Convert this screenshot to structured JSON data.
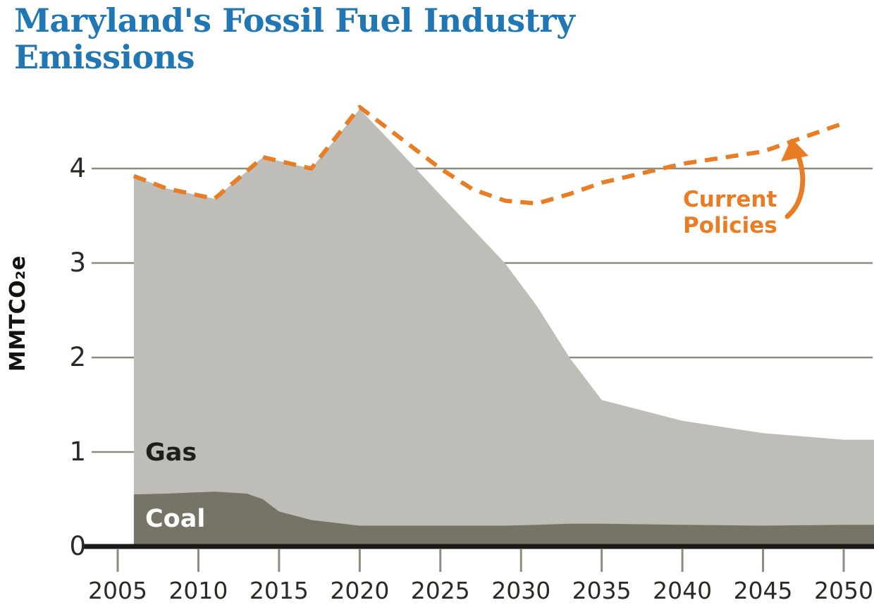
{
  "page": {
    "title_lines": [
      "Maryland's Fossil Fuel Industry",
      "Emissions"
    ],
    "title_color": "#2176B4",
    "background": "#FFFFFF"
  },
  "chart_data": {
    "type": "area",
    "title": "Maryland's Fossil Fuel Industry Emissions",
    "xlabel": "",
    "ylabel": "MMTCO₂e",
    "x_ticks": [
      2005,
      2010,
      2015,
      2020,
      2025,
      2030,
      2035,
      2040,
      2045,
      2050
    ],
    "y_ticks": [
      0,
      1,
      2,
      3,
      4
    ],
    "xlim": [
      2005,
      2052
    ],
    "ylim": [
      0,
      4.8
    ],
    "grid": "horizontal",
    "legend_position": "inline-labels",
    "stacked": true,
    "years": [
      2006,
      2008,
      2011,
      2013,
      2014,
      2015,
      2017,
      2020,
      2022,
      2025,
      2027,
      2029,
      2031,
      2033,
      2035,
      2040,
      2045,
      2050
    ],
    "series": [
      {
        "name": "Coal",
        "color": "#757467",
        "label_color": "#FFFFFF",
        "values": [
          0.55,
          0.56,
          0.58,
          0.56,
          0.5,
          0.37,
          0.28,
          0.22,
          0.22,
          0.22,
          0.22,
          0.22,
          0.23,
          0.24,
          0.24,
          0.23,
          0.22,
          0.23
        ]
      },
      {
        "name": "Gas",
        "color": "#BEBDB7",
        "label_color": "#1F1E1A",
        "values": [
          3.37,
          3.23,
          3.1,
          3.41,
          3.62,
          3.71,
          3.72,
          4.41,
          4.05,
          3.5,
          3.14,
          2.78,
          2.31,
          1.76,
          1.31,
          1.1,
          0.98,
          0.9
        ]
      }
    ],
    "line_series": {
      "name": "Current Policies",
      "label_text": "Current\nPolicies",
      "color": "#E87D26",
      "style": "dashed",
      "values": [
        3.92,
        3.79,
        3.68,
        3.97,
        4.12,
        4.08,
        4.0,
        4.65,
        4.39,
        4.0,
        3.78,
        3.66,
        3.63,
        3.73,
        3.85,
        4.05,
        4.18,
        4.48
      ]
    },
    "colors": {
      "grid": "#8C8B7F",
      "axis": "#1A1916",
      "tick_label": "#2B2A25"
    }
  }
}
